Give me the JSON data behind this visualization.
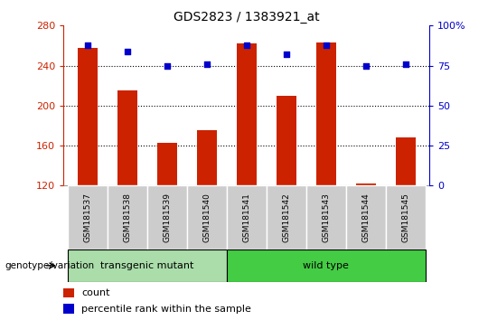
{
  "title": "GDS2823 / 1383921_at",
  "samples": [
    "GSM181537",
    "GSM181538",
    "GSM181539",
    "GSM181540",
    "GSM181541",
    "GSM181542",
    "GSM181543",
    "GSM181544",
    "GSM181545"
  ],
  "counts": [
    258,
    215,
    163,
    175,
    262,
    210,
    263,
    122,
    168
  ],
  "percentile_ranks": [
    88,
    84,
    75,
    76,
    88,
    82,
    88,
    75,
    76
  ],
  "ylim_left": [
    120,
    280
  ],
  "ylim_right": [
    0,
    100
  ],
  "yticks_left": [
    120,
    160,
    200,
    240,
    280
  ],
  "yticks_right": [
    0,
    25,
    50,
    75,
    100
  ],
  "bar_color": "#cc2200",
  "dot_color": "#0000cc",
  "transgenic_color": "#aaddaa",
  "wild_type_color": "#44cc44",
  "left_axis_color": "#cc2200",
  "right_axis_color": "#0000cc",
  "genotype_label": "genotype/variation",
  "transgenic_label": "transgenic mutant",
  "wild_type_label": "wild type",
  "legend_count": "count",
  "legend_percentile": "percentile rank within the sample",
  "bar_width": 0.5,
  "base_value": 120,
  "n_transgenic": 4,
  "n_samples": 9
}
